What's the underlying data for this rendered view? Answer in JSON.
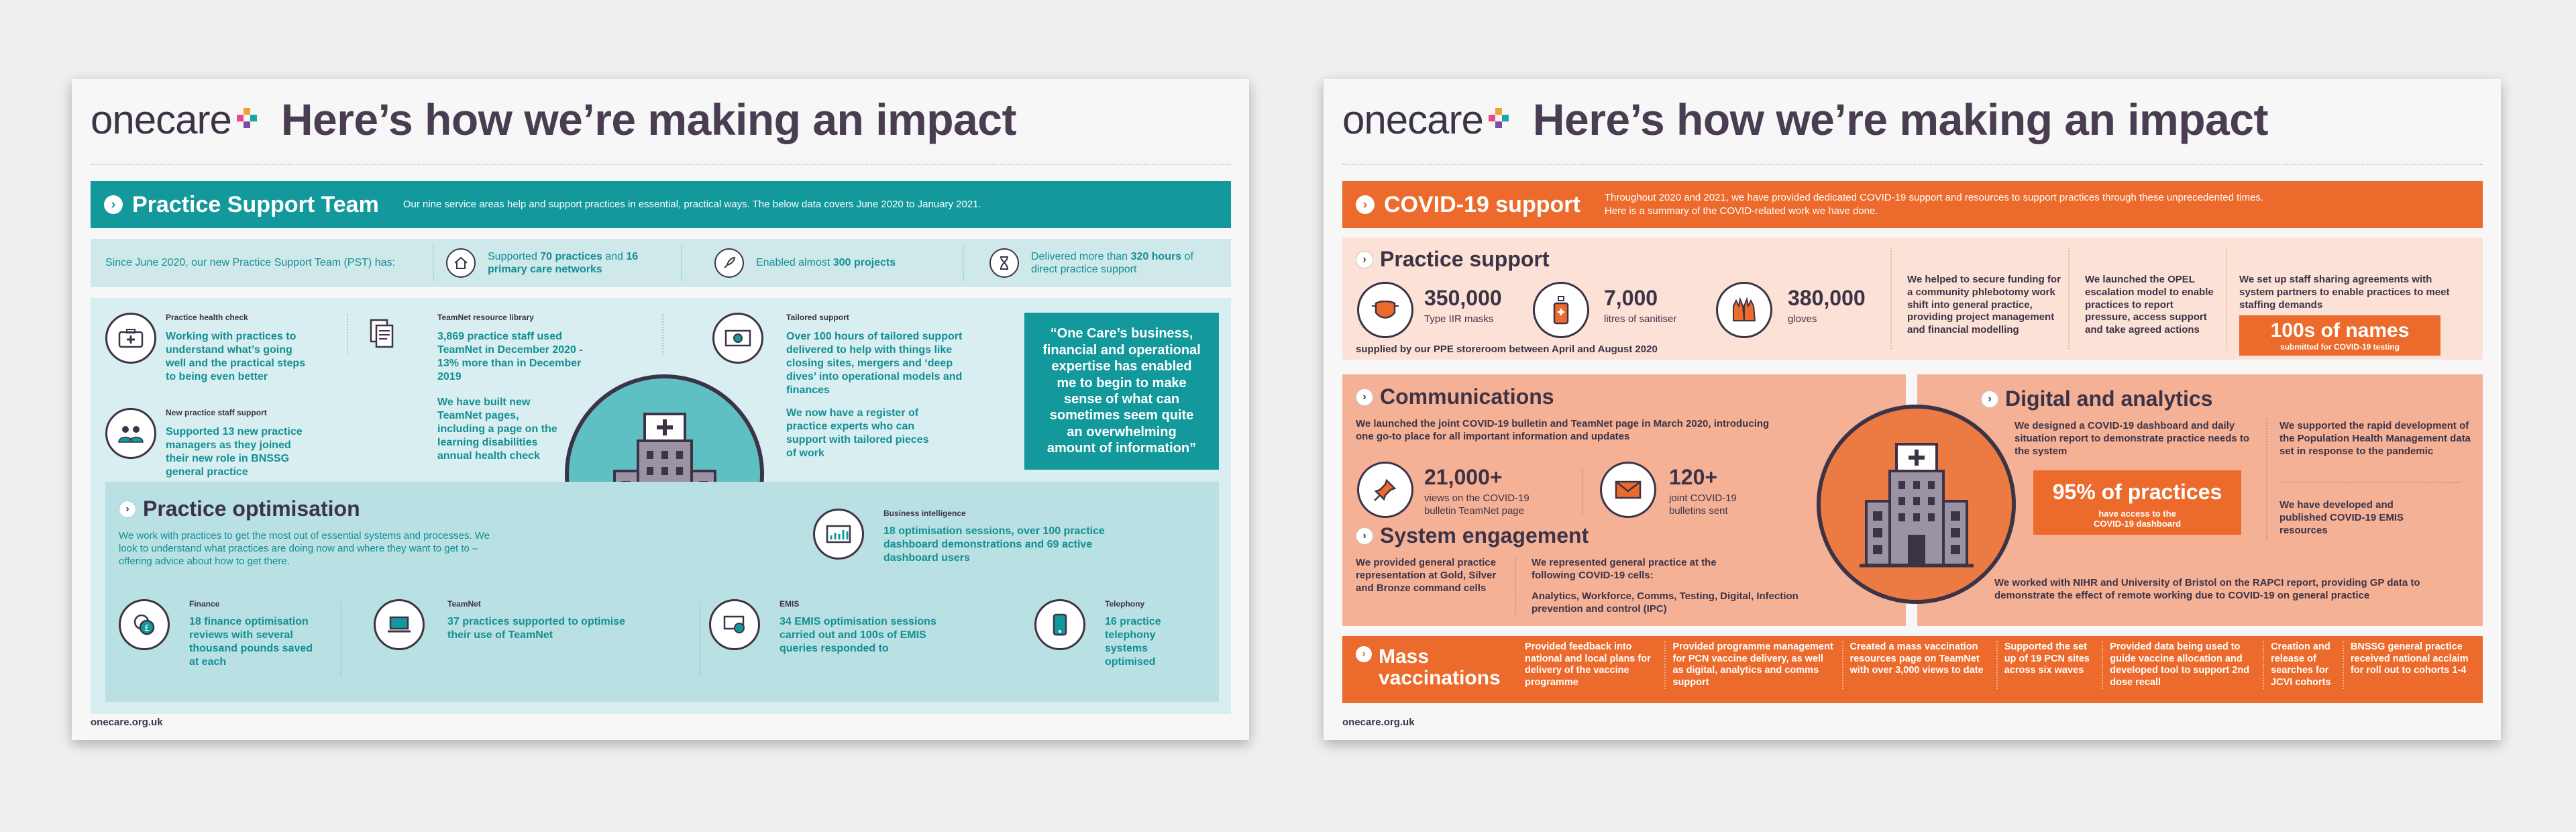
{
  "brand": {
    "logo_text": "onecare",
    "headline": "Here’s how we’re making an impact",
    "url": "onecare.org.uk"
  },
  "colors": {
    "teal": "#13989c",
    "teal_light": "#d8eef0",
    "teal_mid": "#b8dfe2",
    "orange": "#ec6a2b",
    "orange_light": "#fbe1d6",
    "orange_mid": "#f4b196",
    "dark": "#3d3347"
  },
  "left": {
    "band": {
      "title": "Practice Support Team",
      "desc": "Our nine service areas help and support practices in essential, practical ways. The below data covers June 2020 to January 2021."
    },
    "intro": "Since June 2020, our new Practice Support Team (PST) has:",
    "stats": [
      {
        "icon": "house-icon",
        "pre": "Supported ",
        "strong1": "70 practices",
        "mid": " and ",
        "strong2": "16 primary care networks",
        "post": ""
      },
      {
        "icon": "rocket-icon",
        "pre": "Enabled almost ",
        "strong1": "300 projects",
        "mid": "",
        "strong2": "",
        "post": ""
      },
      {
        "icon": "hourglass-icon",
        "pre": "Delivered more than ",
        "strong1": "320 hours",
        "mid": " of direct practice support",
        "strong2": "",
        "post": ""
      }
    ],
    "health_check": {
      "label": "Practice health check",
      "text": "Working with practices to understand what’s going well and the practical steps to being even better"
    },
    "new_staff": {
      "label": "New practice staff support",
      "text": "Supported 13 new practice managers as they joined their new role in BNSSG general practice"
    },
    "teamnet_library": {
      "label": "TeamNet resource library",
      "text1": "3,869 practice staff used TeamNet in December 2020 - 13% more than in December 2019",
      "text2": "We have built new TeamNet pages, including a page on the learning disabilities annual health check"
    },
    "tailored": {
      "label": "Tailored support",
      "text1": "Over 100 hours of tailored support delivered to help with things like closing sites, mergers and ‘deep dives’ into operational models and finances",
      "text2": "We now have a register of practice experts who can support with tailored pieces of work"
    },
    "quote": "“One Care’s business, financial and operational expertise has enabled me to begin to make sense of what can sometimes seem quite an overwhelming amount of information”",
    "optimisation": {
      "title": "Practice optimisation",
      "desc": "We work with practices to get the most out of essential systems and processes. We look to understand what practices are doing now and where they want to get to – offering advice about how to get there.",
      "bi": {
        "label": "Business intelligence",
        "text": "18 optimisation sessions, over 100 practice dashboard demonstrations and 69 active dashboard users"
      },
      "finance": {
        "label": "Finance",
        "text": "18 finance optimisation reviews with several thousand pounds saved at each"
      },
      "teamnet": {
        "label": "TeamNet",
        "text": "37 practices supported to optimise their use of TeamNet"
      },
      "emis": {
        "label": "EMIS",
        "text": "34 EMIS optimisation sessions carried out and 100s of EMIS queries responded to"
      },
      "telephony": {
        "label": "Telephony",
        "text": "16 practice telephony systems optimised"
      }
    }
  },
  "right": {
    "band": {
      "title": "COVID-19 support",
      "desc": "Throughout 2020 and 2021, we have provided dedicated COVID-19 support and resources to support practices through these unprecedented times. Here is a summary of the COVID-related work we have done."
    },
    "practice_support": {
      "title": "Practice support",
      "items": [
        {
          "num": "350,000",
          "label": "Type IIR masks",
          "icon": "mask-icon"
        },
        {
          "num": "7,000",
          "label": "litres of sanitiser",
          "icon": "sanitiser-icon"
        },
        {
          "num": "380,000",
          "label": "gloves",
          "icon": "gloves-icon"
        }
      ],
      "footnote": "supplied by our PPE storeroom between April and August 2020",
      "col1": "We helped to secure funding for a community phlebotomy work shift into general practice, providing project management and financial modelling",
      "col2": "We launched the OPEL escalation model to enable practices to report pressure, access support and take agreed actions",
      "col3": "We set up staff sharing agreements with system partners to enable practices to meet staffing demands",
      "badge_big": "100s of names",
      "badge_small": "submitted for COVID-19 testing"
    },
    "communications": {
      "title": "Communications",
      "text": "We launched the joint COVID-19 bulletin and TeamNet page in March 2020, introducing one go-to place for all important information and updates",
      "stat1_num": "21,000+",
      "stat1_label": "views on the COVID-19 bulletin TeamNet page",
      "stat2_num": "120+",
      "stat2_label": "joint COVID-19 bulletins sent"
    },
    "system": {
      "title": "System engagement",
      "left": "We provided general practice representation at Gold, Silver and Bronze command cells",
      "right1": "We represented general practice at the following COVID-19 cells:",
      "right2": "Analytics, Workforce, Comms, Testing, Digital, Infection prevention and control (IPC)"
    },
    "digital": {
      "title": "Digital and analytics",
      "text1": "We designed a COVID-19 dashboard and daily situation report to demonstrate practice needs to the system",
      "badge_big": "95% of practices",
      "badge_small": "have access to the COVID-19 dashboard",
      "text2": "We supported the rapid development of the Population Health Management data set in response to the pandemic",
      "text3": "We have developed and published COVID-19 EMIS resources",
      "text4": "We worked with NIHR and University of Bristol on the RAPCI report, providing GP data to demonstrate the effect of remote working due to COVID-19 on general practice"
    },
    "mass": {
      "title1": "Mass",
      "title2": "vaccinations",
      "cols": [
        "Provided feedback into national and local plans for delivery of the vaccine programme",
        "Provided programme management for PCN vaccine delivery, as well as digital, analytics and comms support",
        "Created a mass vaccination resources page on TeamNet with over 3,000 views to date",
        "Supported the set up of 19 PCN sites across six waves",
        "Provided data being used to guide vaccine allocation and developed tool to support 2nd dose recall",
        "Creation and release of searches for JCVI cohorts",
        "BNSSG general practice received national acclaim for roll out to cohorts 1-4"
      ]
    }
  }
}
